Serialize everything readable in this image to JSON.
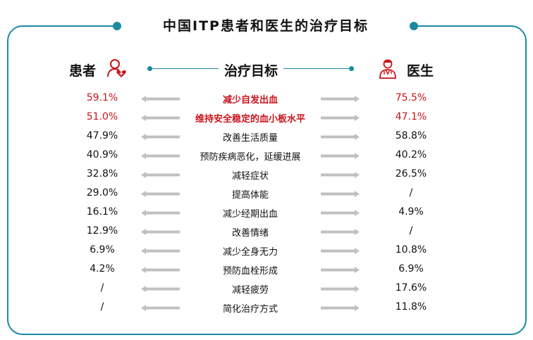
{
  "title": "中国ITP患者和医生的治疗目标",
  "headers": {
    "patient": "患者",
    "goal": "治疗目标",
    "doctor": "医生"
  },
  "colors": {
    "accent": "#1a8aa0",
    "highlight": "#c8141b",
    "arrow": "#c0c0c0"
  },
  "icons": {
    "patient": "patient-heart-icon",
    "doctor": "doctor-icon"
  },
  "rows": [
    {
      "patient": "59.1%",
      "goal": "减少自发出血",
      "doctor": "75.5%",
      "highlight": true
    },
    {
      "patient": "51.0%",
      "goal": "维持安全稳定的血小板水平",
      "doctor": "47.1%",
      "highlight": true
    },
    {
      "patient": "47.9%",
      "goal": "改善生活质量",
      "doctor": "58.8%"
    },
    {
      "patient": "40.9%",
      "goal": "预防疾病恶化，延缓进展",
      "doctor": "40.2%"
    },
    {
      "patient": "32.8%",
      "goal": "减轻症状",
      "doctor": "26.5%"
    },
    {
      "patient": "29.0%",
      "goal": "提高体能",
      "doctor": "/"
    },
    {
      "patient": "16.1%",
      "goal": "减少经期出血",
      "doctor": "4.9%"
    },
    {
      "patient": "12.9%",
      "goal": "改善情绪",
      "doctor": "/"
    },
    {
      "patient": "6.9%",
      "goal": "减少全身无力",
      "doctor": "10.8%"
    },
    {
      "patient": "4.2%",
      "goal": "预防血栓形成",
      "doctor": "6.9%"
    },
    {
      "patient": "/",
      "goal": "减轻疲劳",
      "doctor": "17.6%"
    },
    {
      "patient": "/",
      "goal": "简化治疗方式",
      "doctor": "11.8%"
    }
  ]
}
